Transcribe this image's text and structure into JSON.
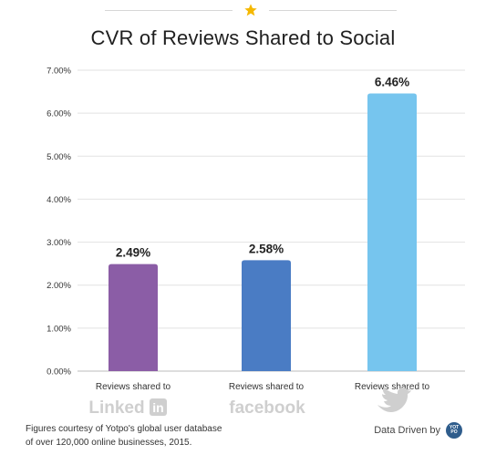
{
  "header": {
    "title": "CVR of Reviews Shared to Social",
    "colors": {
      "rule": "#d7d7d7",
      "star": "#f5b800"
    },
    "icon": "star-icon"
  },
  "chart_data": {
    "type": "bar",
    "title": "CVR of Reviews Shared to Social",
    "xlabel": "",
    "ylabel": "",
    "ylim": [
      0,
      7
    ],
    "y_ticks": [
      "0.00%",
      "1.00%",
      "2.00%",
      "3.00%",
      "4.00%",
      "5.00%",
      "6.00%",
      "7.00%"
    ],
    "categories": [
      "Reviews shared to",
      "Reviews shared to",
      "Reviews shared to"
    ],
    "category_brands": [
      "LinkedIn",
      "facebook",
      "twitter"
    ],
    "values": [
      2.49,
      2.58,
      6.46
    ],
    "value_labels": [
      "2.49%",
      "2.58%",
      "6.46%"
    ],
    "colors": [
      "#8b5da6",
      "#4a7cc4",
      "#76c5ee"
    ],
    "grid": true,
    "legend": "none"
  },
  "footer": {
    "note_line1": "Figures courtesy of Yotpo's global user database",
    "note_line2": "of over 120,000 online businesses, 2015.",
    "brand_text": "Data Driven by",
    "brand_logo_text": "YOT PO"
  }
}
